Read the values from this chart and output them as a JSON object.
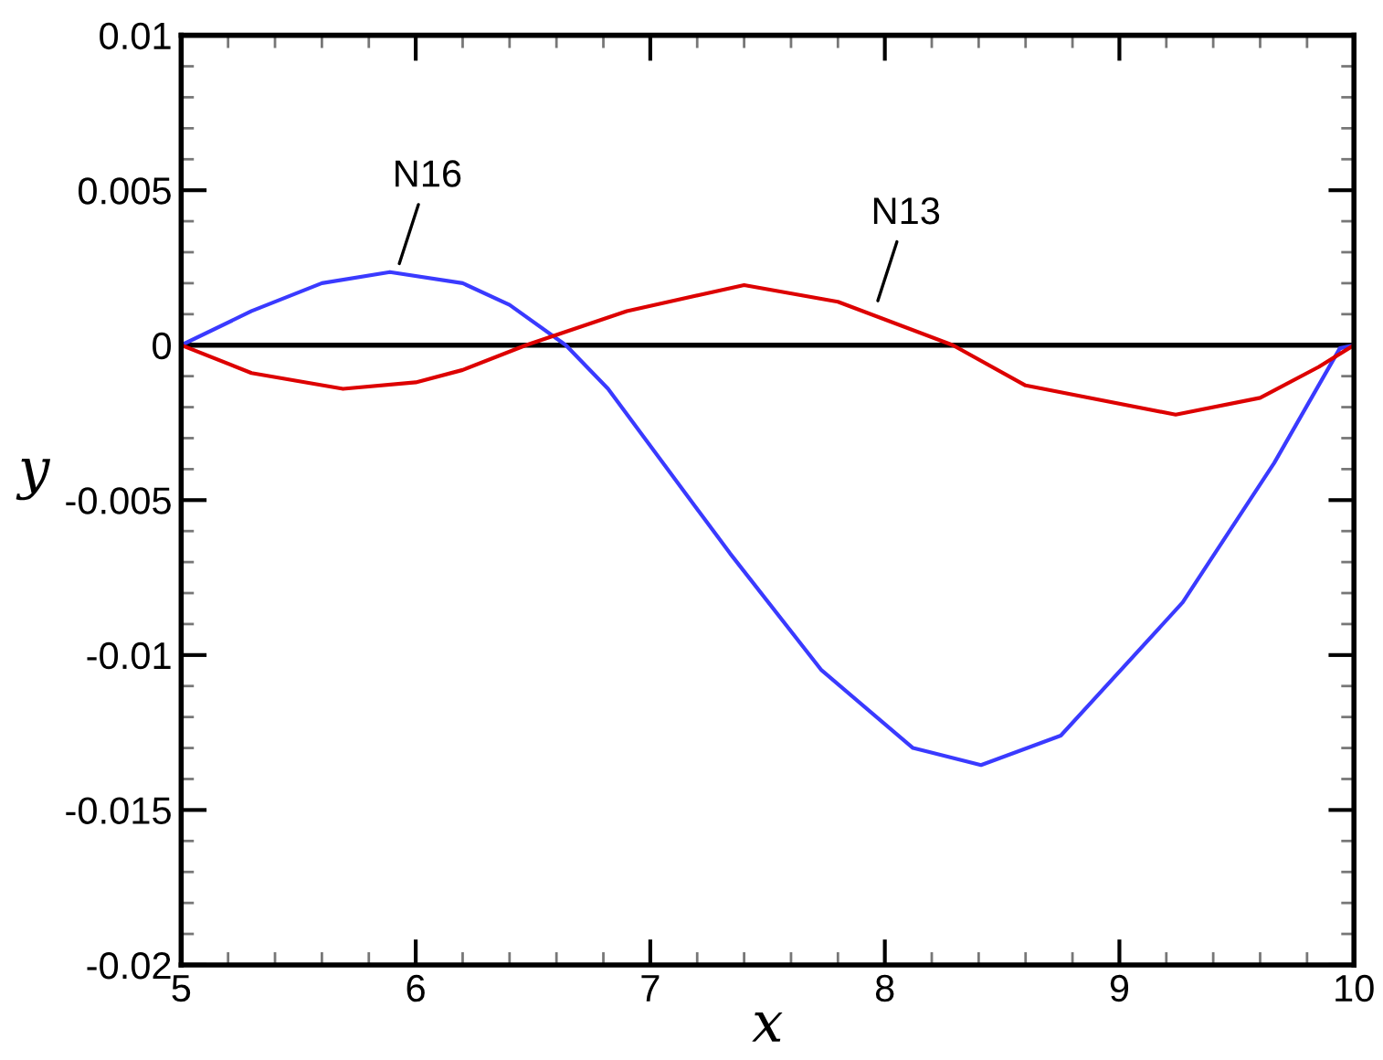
{
  "chart_data": {
    "type": "line",
    "xlabel": "x",
    "ylabel": "y",
    "xlim": [
      5,
      10
    ],
    "ylim": [
      -0.02,
      0.01
    ],
    "xticks": [
      5,
      6,
      7,
      8,
      9,
      10
    ],
    "yticks": [
      -0.02,
      -0.015,
      -0.01,
      -0.005,
      0,
      0.005,
      0.01
    ],
    "grid": false,
    "marker": "none",
    "line_style": "solid",
    "ref_lines": [
      {
        "axis": "y",
        "value": 0,
        "color": "#000000"
      }
    ],
    "series": [
      {
        "color": "#3a3aff",
        "x": [
          5,
          5.3,
          5.6,
          5.89,
          6.2,
          6.4,
          6.64,
          6.82,
          7.34,
          7.73,
          8.12,
          8.41,
          8.75,
          9.27,
          9.66,
          9.94,
          10
        ],
        "values": [
          0,
          0.0011,
          0.002,
          0.00236,
          0.002,
          0.0013,
          0,
          -0.00141,
          -0.00672,
          -0.01049,
          -0.013,
          -0.01355,
          -0.0126,
          -0.0083,
          -0.0038,
          -0.0001,
          0
        ]
      },
      {
        "color": "#dd0000",
        "x": [
          5,
          5.3,
          5.69,
          6.0,
          6.2,
          6.47,
          6.9,
          7.4,
          7.8,
          8.29,
          8.6,
          9.24,
          9.6,
          9.85,
          10
        ],
        "values": [
          0,
          -0.0009,
          -0.00141,
          -0.0012,
          -0.0008,
          0,
          0.0011,
          0.00194,
          0.0014,
          0,
          -0.0013,
          -0.00224,
          -0.0017,
          -0.0007,
          0
        ]
      }
    ],
    "annotations": [
      {
        "text": "N16",
        "x": 5.92,
        "y": 0.0024
      },
      {
        "text": "N13",
        "x": 7.96,
        "y": 0.0012
      }
    ]
  }
}
